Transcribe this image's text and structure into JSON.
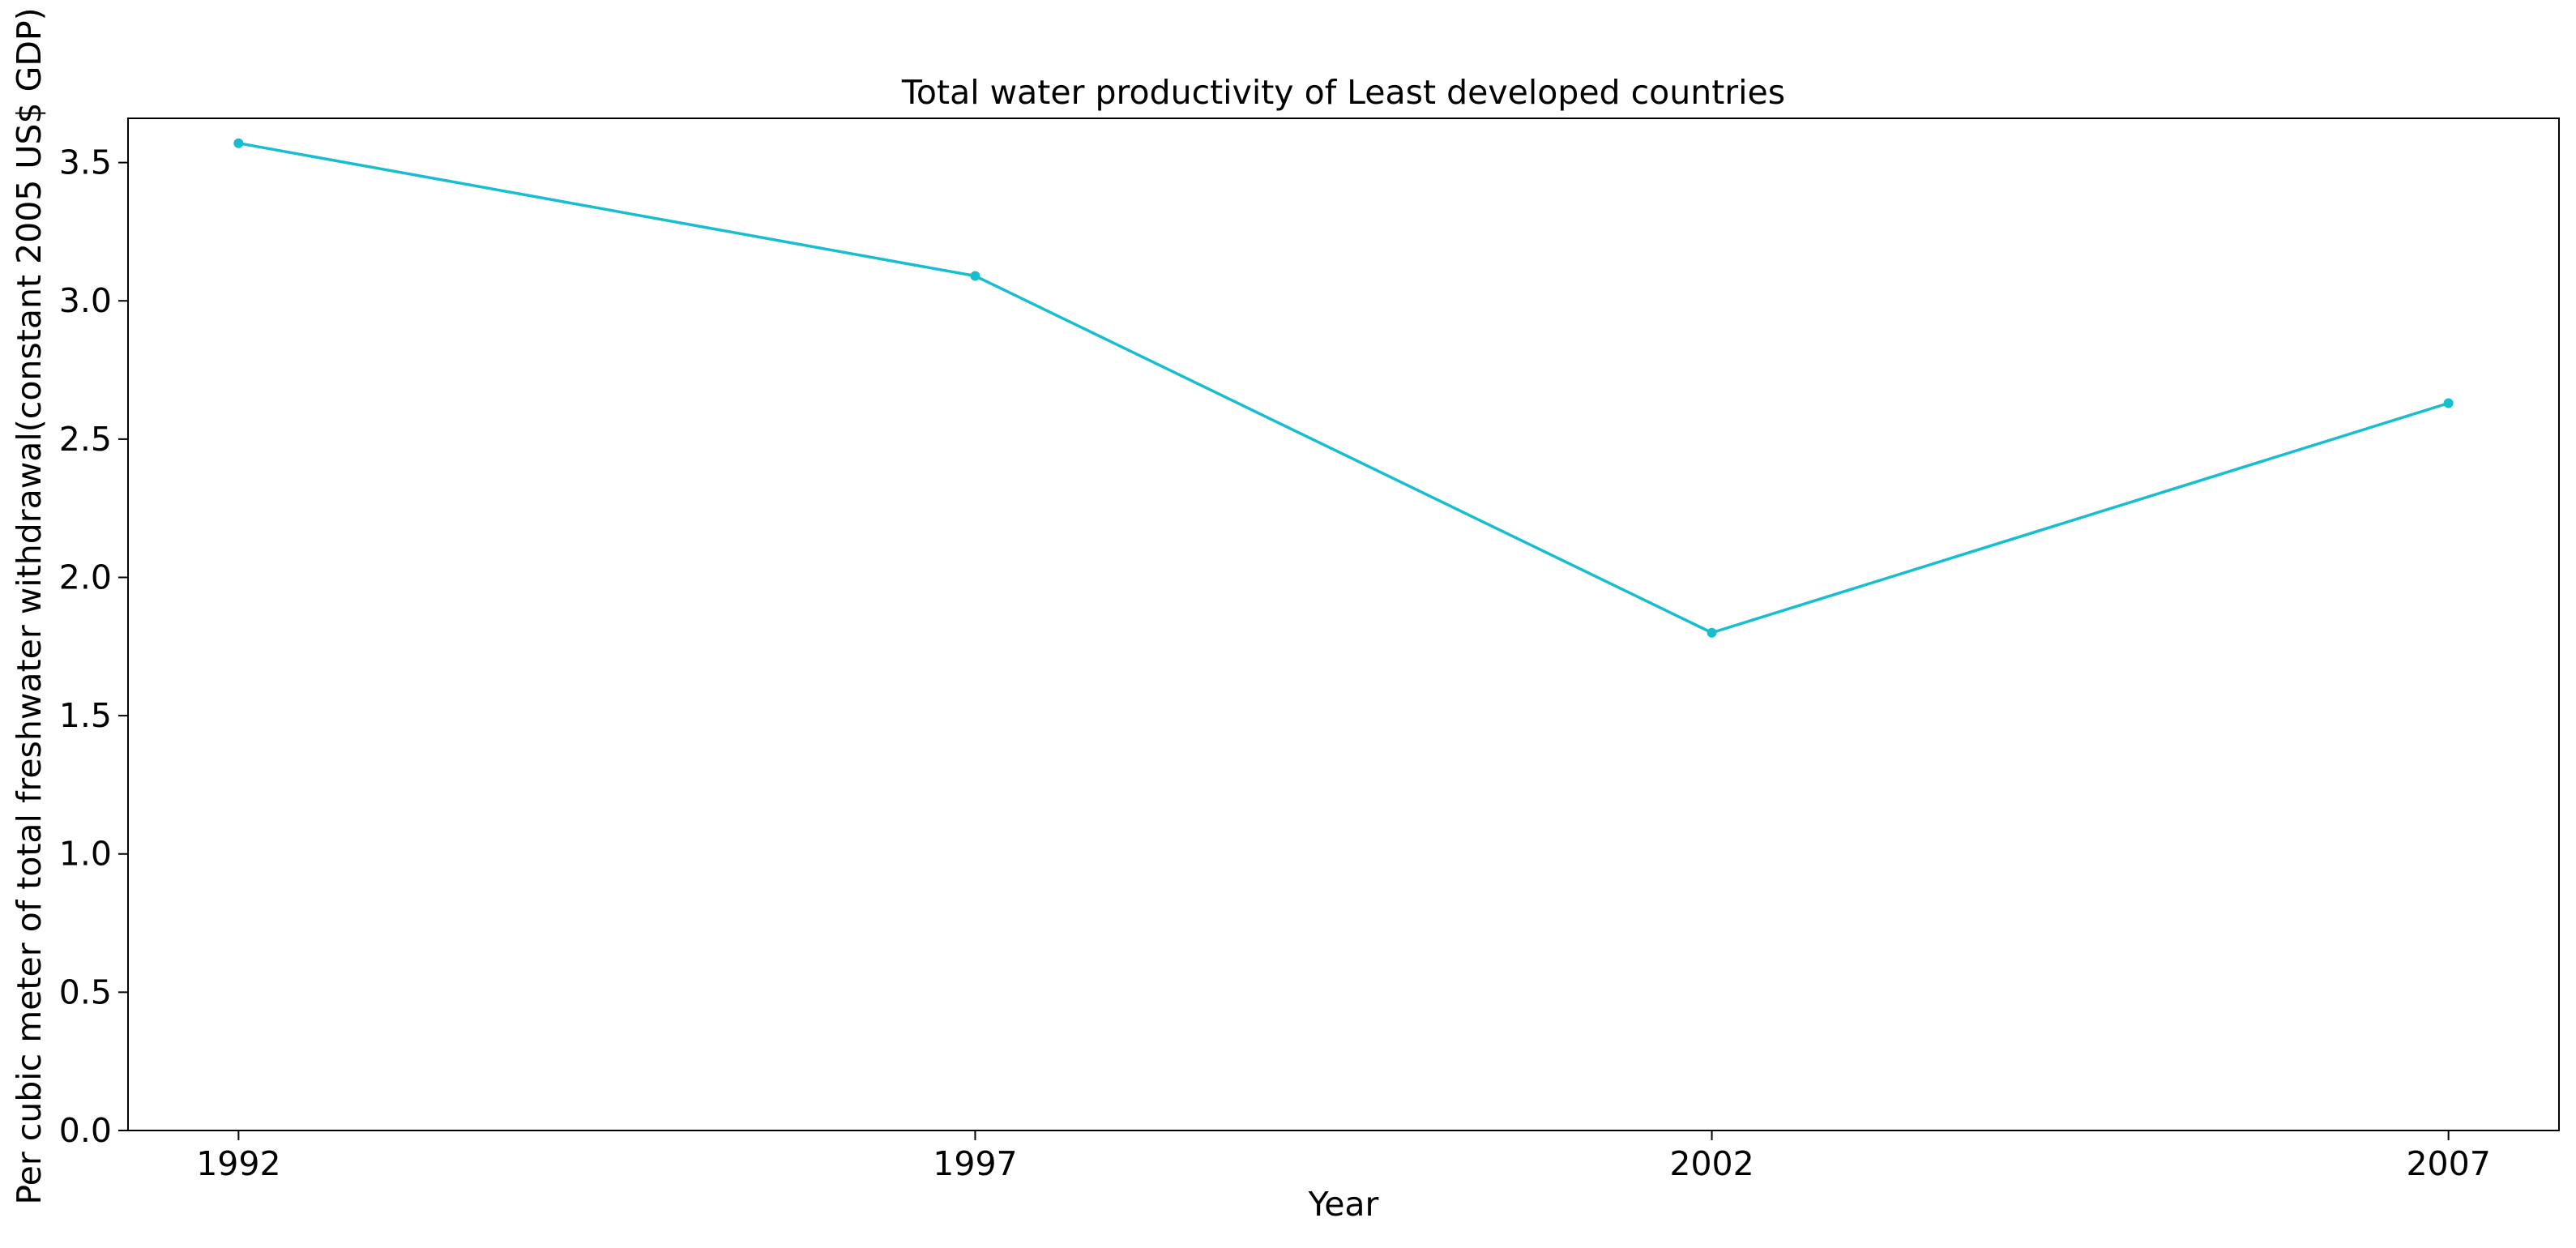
{
  "chart_data": {
    "type": "line",
    "title": "Total water productivity of Least developed countries",
    "xlabel": "Year",
    "ylabel": "Per cubic meter of total freshwater withdrawal(constant 2005 US$ GDP)",
    "x": [
      1992,
      1997,
      2002,
      2007
    ],
    "x_tick_labels": [
      "1992",
      "1997",
      "2002",
      "2007"
    ],
    "series": [
      {
        "values": [
          3.57,
          3.09,
          1.8,
          2.63
        ],
        "color": "#17becf"
      }
    ],
    "y_ticks": [
      0.0,
      0.5,
      1.0,
      1.5,
      2.0,
      2.5,
      3.0,
      3.5
    ],
    "y_tick_labels": [
      "0.0",
      "0.5",
      "1.0",
      "1.5",
      "2.0",
      "2.5",
      "3.0",
      "3.5"
    ],
    "xlim": [
      1991.25,
      2007.75
    ],
    "ylim": [
      0,
      3.66
    ],
    "grid": false,
    "legend": "none"
  }
}
